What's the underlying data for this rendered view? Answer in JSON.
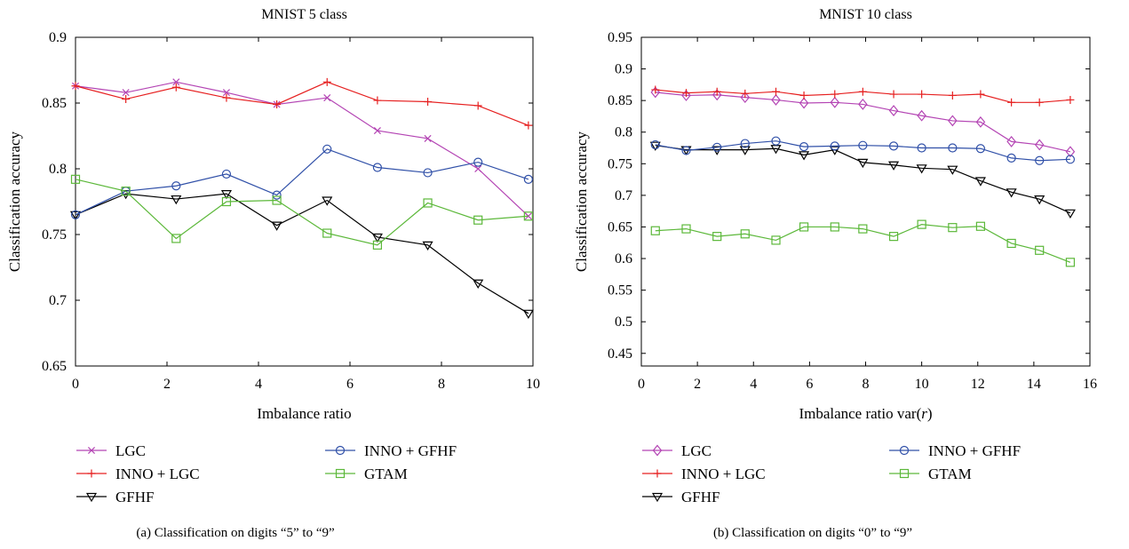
{
  "chart_data": [
    {
      "type": "line",
      "title": "MNIST 5 class",
      "xlabel": "Imbalance ratio",
      "ylabel": "Classification accuracy",
      "caption": "(a)  Classification on digits “5” to “9”",
      "xlim": [
        0,
        10
      ],
      "ylim": [
        0.65,
        0.9
      ],
      "xticks": [
        0,
        2,
        4,
        6,
        8,
        10
      ],
      "yticks": [
        0.65,
        0.7,
        0.75,
        0.8,
        0.85,
        0.9
      ],
      "ytick_labels": [
        "0.65",
        "0.7",
        "0.75",
        "0.8",
        "0.85",
        "0.9"
      ],
      "grid": false,
      "legend_placement": "below",
      "x": [
        0,
        1.1,
        2.2,
        3.3,
        4.4,
        5.5,
        6.6,
        7.7,
        8.8,
        9.9
      ],
      "series": [
        {
          "name": "LGC",
          "color": "#b445b4",
          "marker": "x",
          "values": [
            0.863,
            0.858,
            0.866,
            0.858,
            0.849,
            0.854,
            0.829,
            0.823,
            0.8,
            0.764
          ]
        },
        {
          "name": "INNO + LGC",
          "color": "#e62020",
          "marker": "plus",
          "values": [
            0.863,
            0.853,
            0.862,
            0.854,
            0.849,
            0.866,
            0.852,
            0.851,
            0.848,
            0.833
          ]
        },
        {
          "name": "GFHF",
          "color": "#000000",
          "marker": "triangle-down",
          "values": [
            0.765,
            0.781,
            0.777,
            0.781,
            0.757,
            0.776,
            0.748,
            0.742,
            0.713,
            0.69
          ]
        },
        {
          "name": "INNO + GFHF",
          "color": "#3050a8",
          "marker": "circle",
          "values": [
            0.765,
            0.783,
            0.787,
            0.796,
            0.78,
            0.815,
            0.801,
            0.797,
            0.805,
            0.792
          ]
        },
        {
          "name": "GTAM",
          "color": "#5cb83a",
          "marker": "square",
          "values": [
            0.792,
            0.783,
            0.747,
            0.775,
            0.776,
            0.751,
            0.742,
            0.774,
            0.761,
            0.764
          ]
        }
      ]
    },
    {
      "type": "line",
      "title": "MNIST 10 class",
      "xlabel": "Imbalance ratio var(",
      "xlabel_var": "r",
      "xlabel_end": ")",
      "ylabel": "Classification accuracy",
      "caption": "(b)  Classification on digits “0” to “9”",
      "xlim": [
        0,
        16
      ],
      "ylim": [
        0.43,
        0.95
      ],
      "xticks": [
        0,
        2,
        4,
        6,
        8,
        10,
        12,
        14,
        16
      ],
      "yticks": [
        0.45,
        0.5,
        0.55,
        0.6,
        0.65,
        0.7,
        0.75,
        0.8,
        0.85,
        0.9,
        0.95
      ],
      "ytick_labels": [
        "0.45",
        "0.5",
        "0.55",
        "0.6",
        "0.65",
        "0.7",
        "0.75",
        "0.8",
        "0.85",
        "0.9",
        "0.95"
      ],
      "grid": false,
      "legend_placement": "below",
      "x": [
        0.5,
        1.6,
        2.7,
        3.7,
        4.8,
        5.8,
        6.9,
        7.9,
        9.0,
        10.0,
        11.1,
        12.1,
        13.2,
        14.2,
        15.3
      ],
      "series": [
        {
          "name": "LGC",
          "color": "#b445b4",
          "marker": "diamond",
          "values": [
            0.863,
            0.858,
            0.859,
            0.855,
            0.851,
            0.846,
            0.847,
            0.844,
            0.834,
            0.826,
            0.818,
            0.816,
            0.785,
            0.78,
            0.769
          ]
        },
        {
          "name": "INNO + LGC",
          "color": "#e62020",
          "marker": "plus",
          "values": [
            0.867,
            0.862,
            0.864,
            0.861,
            0.864,
            0.858,
            0.86,
            0.864,
            0.86,
            0.86,
            0.858,
            0.86,
            0.847,
            0.847,
            0.851
          ]
        },
        {
          "name": "GFHF",
          "color": "#000000",
          "marker": "triangle-down",
          "values": [
            0.779,
            0.772,
            0.772,
            0.772,
            0.774,
            0.764,
            0.772,
            0.752,
            0.748,
            0.743,
            0.741,
            0.723,
            0.705,
            0.694,
            0.672
          ]
        },
        {
          "name": "INNO + GFHF",
          "color": "#3050a8",
          "marker": "circle",
          "values": [
            0.78,
            0.771,
            0.776,
            0.782,
            0.786,
            0.777,
            0.778,
            0.779,
            0.778,
            0.775,
            0.775,
            0.774,
            0.759,
            0.755,
            0.757
          ]
        },
        {
          "name": "GTAM",
          "color": "#5cb83a",
          "marker": "square",
          "values": [
            0.644,
            0.647,
            0.635,
            0.639,
            0.629,
            0.65,
            0.65,
            0.647,
            0.635,
            0.654,
            0.649,
            0.651,
            0.624,
            0.613,
            0.594
          ]
        }
      ]
    }
  ]
}
